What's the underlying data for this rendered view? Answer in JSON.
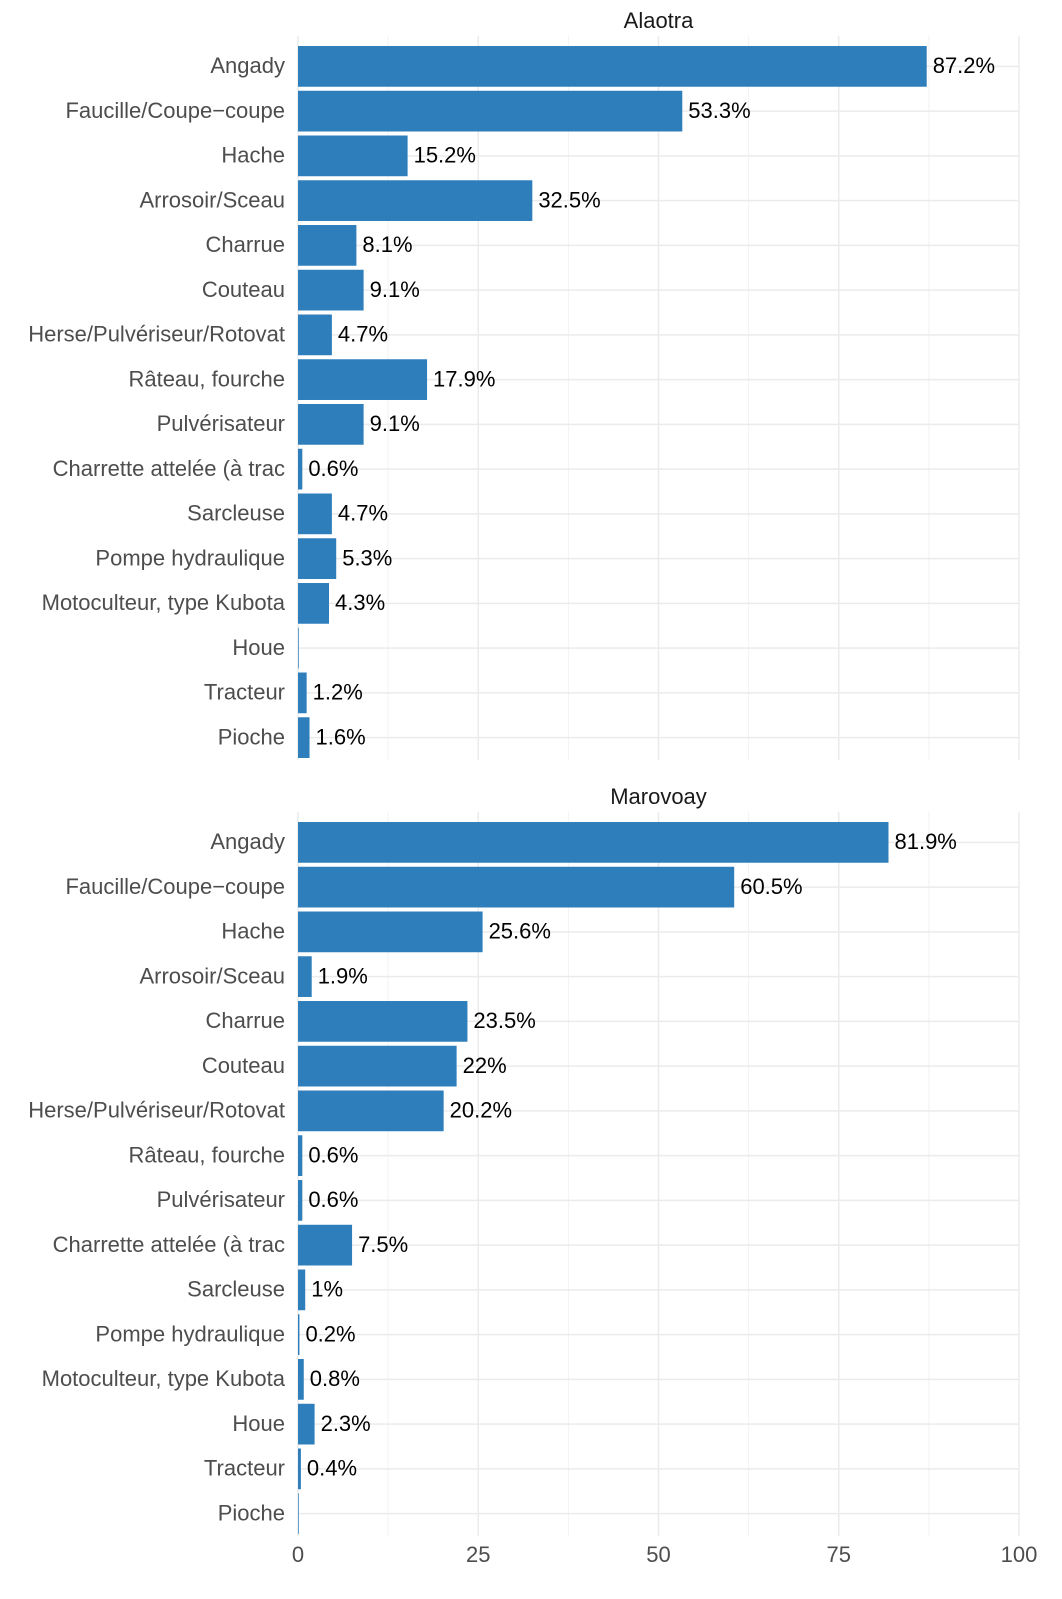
{
  "chart_data": [
    {
      "type": "barh",
      "title": "Alaotra",
      "categories": [
        "Angady",
        "Faucille/Coupe−coupe",
        "Hache",
        "Arrosoir/Sceau",
        "Charrue",
        "Couteau",
        "Herse/Pulvériseur/Rotovat",
        "Râteau, fourche",
        "Pulvérisateur",
        "Charrette attelée (à trac",
        "Sarcleuse",
        "Pompe hydraulique",
        "Motoculteur, type Kubota",
        "Houe",
        "Tracteur",
        "Pioche"
      ],
      "values": [
        87.2,
        53.3,
        15.2,
        32.5,
        8.1,
        9.1,
        4.7,
        17.9,
        9.1,
        0.6,
        4.7,
        5.3,
        4.3,
        0.1,
        1.2,
        1.6
      ],
      "value_labels": [
        "87.2%",
        "53.3%",
        "15.2%",
        "32.5%",
        "8.1%",
        "9.1%",
        "4.7%",
        "17.9%",
        "9.1%",
        "0.6%",
        "4.7%",
        "5.3%",
        "4.3%",
        null,
        "1.2%",
        "1.6%"
      ],
      "color": "#2e7ebb",
      "xlim": [
        0,
        100
      ],
      "xticks": [
        0,
        25,
        50,
        75,
        100
      ],
      "grid": true
    },
    {
      "type": "barh",
      "title": "Marovoay",
      "categories": [
        "Angady",
        "Faucille/Coupe−coupe",
        "Hache",
        "Arrosoir/Sceau",
        "Charrue",
        "Couteau",
        "Herse/Pulvériseur/Rotovat",
        "Râteau, fourche",
        "Pulvérisateur",
        "Charrette attelée (à trac",
        "Sarcleuse",
        "Pompe hydraulique",
        "Motoculteur, type Kubota",
        "Houe",
        "Tracteur",
        "Pioche"
      ],
      "values": [
        81.9,
        60.5,
        25.6,
        1.9,
        23.5,
        22,
        20.2,
        0.6,
        0.6,
        7.5,
        1,
        0.2,
        0.8,
        2.3,
        0.4,
        0.1
      ],
      "value_labels": [
        "81.9%",
        "60.5%",
        "25.6%",
        "1.9%",
        "23.5%",
        "22%",
        "20.2%",
        "0.6%",
        "0.6%",
        "7.5%",
        "1%",
        "0.2%",
        "0.8%",
        "2.3%",
        "0.4%",
        null
      ],
      "color": "#2e7ebb",
      "xlim": [
        0,
        100
      ],
      "xticks": [
        0,
        25,
        50,
        75,
        100
      ],
      "grid": true
    }
  ]
}
